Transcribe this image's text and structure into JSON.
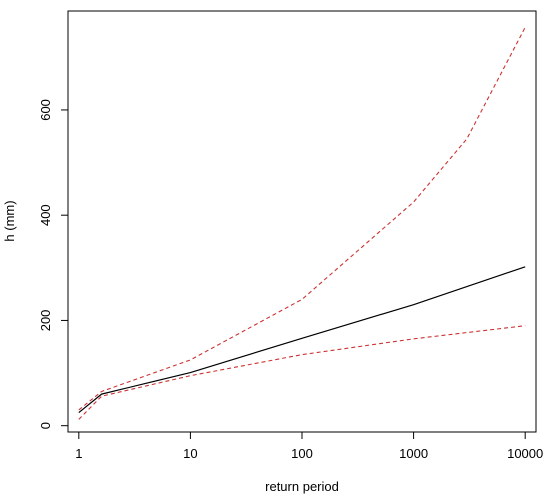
{
  "chart_data": {
    "type": "line",
    "xlabel": "return period",
    "ylabel": "h (mm)",
    "x_scale": "log",
    "xlim": [
      0.8,
      12500
    ],
    "ylim": [
      -12,
      788
    ],
    "x_ticks": [
      {
        "value": 1,
        "label": "1"
      },
      {
        "value": 10,
        "label": "10"
      },
      {
        "value": 100,
        "label": "100"
      },
      {
        "value": 1000,
        "label": "1000"
      },
      {
        "value": 10000,
        "label": "10000"
      }
    ],
    "y_ticks": [
      {
        "value": 0,
        "label": "0"
      },
      {
        "value": 200,
        "label": "200"
      },
      {
        "value": 400,
        "label": "400"
      },
      {
        "value": 600,
        "label": "600"
      }
    ],
    "grid": false,
    "series": [
      {
        "style": "solid",
        "color": "#000000",
        "points": [
          [
            1,
            25
          ],
          [
            1.6,
            60
          ],
          [
            10,
            101
          ],
          [
            100,
            166
          ],
          [
            1000,
            230
          ],
          [
            10000,
            302
          ]
        ]
      },
      {
        "style": "dashed",
        "color": "#cc3333",
        "points": [
          [
            1,
            30
          ],
          [
            1.6,
            65
          ],
          [
            10,
            125
          ],
          [
            100,
            240
          ],
          [
            1000,
            425
          ],
          [
            3000,
            545
          ],
          [
            10000,
            757
          ]
        ]
      },
      {
        "style": "dashed",
        "color": "#cc3333",
        "points": [
          [
            1,
            12
          ],
          [
            1.6,
            56
          ],
          [
            10,
            95
          ],
          [
            100,
            135
          ],
          [
            1000,
            165
          ],
          [
            10000,
            190
          ]
        ]
      }
    ]
  }
}
